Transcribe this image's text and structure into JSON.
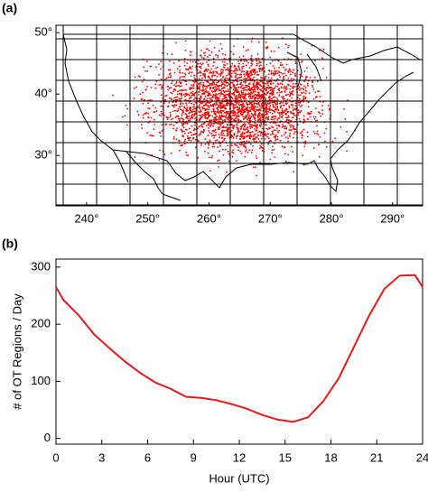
{
  "chart_data": [
    {
      "type": "map",
      "label": "(a)",
      "xlim": [
        235,
        294.9
      ],
      "ylim": [
        21.8,
        51.2
      ],
      "xticks": [
        {
          "value": 240,
          "label": "240°"
        },
        {
          "value": 250,
          "label": "250°"
        },
        {
          "value": 260,
          "label": "260°"
        },
        {
          "value": 270,
          "label": "270°"
        },
        {
          "value": 280,
          "label": "280°"
        },
        {
          "value": 290,
          "label": "290°"
        }
      ],
      "yticks": [
        {
          "value": 30,
          "label": "30°"
        },
        {
          "value": 40,
          "label": "40°"
        },
        {
          "value": 50,
          "label": "50°"
        }
      ],
      "color": "#ff0000"
    },
    {
      "type": "line",
      "label": "(b)",
      "xlabel": "Hour (UTC)",
      "ylabel": "# of OT Regions / Day",
      "x": [
        0,
        0.5,
        1.5,
        2.5,
        3.5,
        4.5,
        5.5,
        6.5,
        7.5,
        8.5,
        9.5,
        10.5,
        11.5,
        12.5,
        13.5,
        14.5,
        15.5,
        16.5,
        17.5,
        18.5,
        19.5,
        20.5,
        21.5,
        22.5,
        23.5,
        24
      ],
      "values": [
        265,
        242,
        215,
        182,
        158,
        135,
        115,
        98,
        87,
        73,
        71,
        67,
        60,
        52,
        41,
        33,
        29,
        37,
        65,
        105,
        160,
        215,
        262,
        285,
        286,
        265
      ],
      "color": "#e8191c",
      "xlim": [
        0,
        24
      ],
      "ylim": [
        -10,
        314
      ],
      "xticks": [
        0,
        3,
        6,
        9,
        12,
        15,
        18,
        21,
        24
      ],
      "yticks": [
        0,
        100,
        200,
        300
      ]
    }
  ]
}
